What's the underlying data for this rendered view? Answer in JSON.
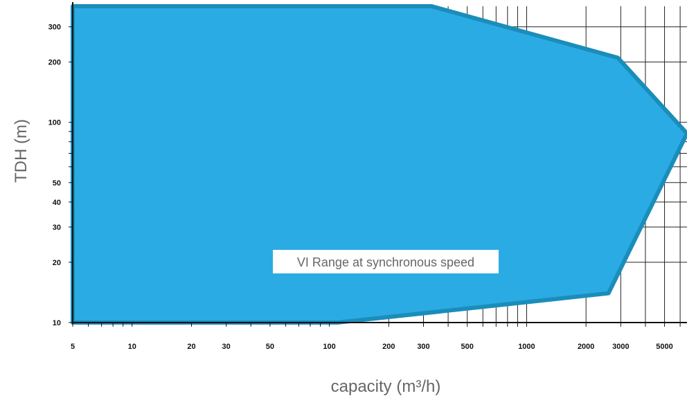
{
  "chart_data": {
    "type": "area",
    "xlabel": "capacity (m³/h)",
    "ylabel": "TDH (m)",
    "x_scale": "log",
    "y_scale": "log",
    "xlim": [
      5,
      6500
    ],
    "ylim": [
      10,
      380
    ],
    "x_ticks": [
      5,
      10,
      20,
      30,
      50,
      100,
      200,
      300,
      500,
      1000,
      2000,
      3000,
      5000
    ],
    "x_tick_labels": [
      "5",
      "10",
      "20",
      "30",
      "50",
      "100",
      "200",
      "300",
      "500",
      "1000",
      "2000",
      "3000",
      "5000"
    ],
    "y_ticks": [
      10,
      20,
      30,
      40,
      50,
      100,
      200,
      300
    ],
    "y_tick_labels": [
      "10",
      "20",
      "30",
      "40",
      "50",
      "100",
      "200",
      "300"
    ],
    "grid": true,
    "fill_color": "#2BABE3",
    "stroke_color": "#1A8DBA",
    "series": [
      {
        "name": "VI Range at synchronous speed",
        "points": [
          {
            "x": 5,
            "y": 10
          },
          {
            "x": 110,
            "y": 10
          },
          {
            "x": 2600,
            "y": 14
          },
          {
            "x": 6500,
            "y": 88
          },
          {
            "x": 2900,
            "y": 210
          },
          {
            "x": 330,
            "y": 380
          },
          {
            "x": 5,
            "y": 380
          }
        ]
      }
    ],
    "annotation": "VI Range at synchronous speed"
  }
}
